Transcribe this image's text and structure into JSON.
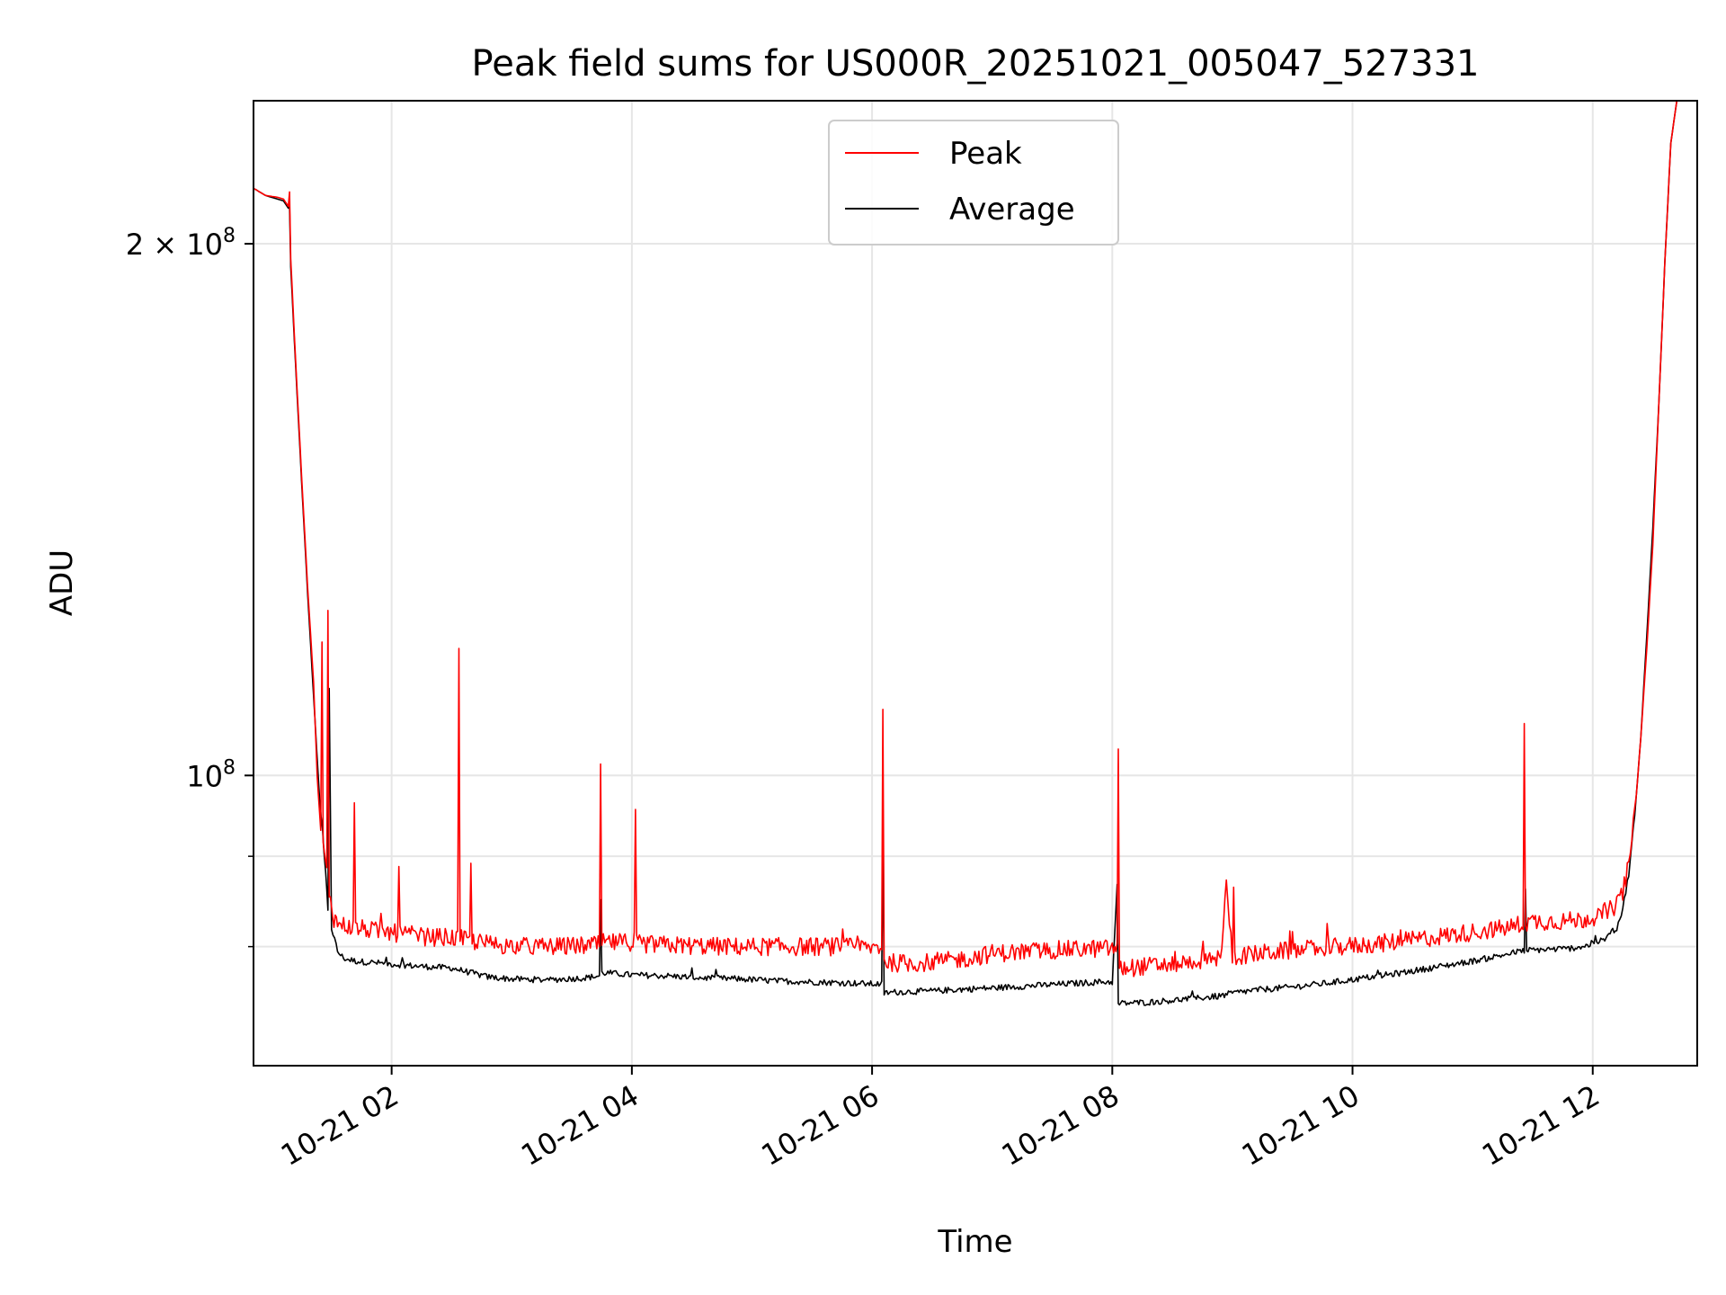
{
  "chart_data": {
    "type": "line",
    "title": "Peak field sums for US000R_20251021_005047_527331",
    "xlabel": "Time",
    "ylabel": "ADU",
    "yscale": "log",
    "xlim": [
      0.85,
      12.87
    ],
    "ylim": [
      68500000,
      241000000
    ],
    "grid": true,
    "legend_position": "top-center",
    "colors": {
      "peak": "#ff0000",
      "average": "#000000",
      "grid": "#e6e6e6"
    },
    "x_ticks": [
      {
        "value": 2,
        "label": "10-21 02"
      },
      {
        "value": 4,
        "label": "10-21 04"
      },
      {
        "value": 6,
        "label": "10-21 06"
      },
      {
        "value": 8,
        "label": "10-21 08"
      },
      {
        "value": 10,
        "label": "10-21 10"
      },
      {
        "value": 12,
        "label": "10-21 12"
      }
    ],
    "y_major_ticks": [
      {
        "value": 100000000,
        "base": "10",
        "exp": "8",
        "prefix": ""
      },
      {
        "value": 200000000,
        "base": "10",
        "exp": "8",
        "prefix": "2 × "
      }
    ],
    "y_minor_ticks": [
      80000000,
      90000000
    ],
    "series": [
      {
        "name": "Peak",
        "key": "peak",
        "x": [
          0.85,
          0.95,
          1.05,
          1.1,
          1.14,
          1.15,
          1.16,
          1.2,
          1.25,
          1.3,
          1.35,
          1.38,
          1.41,
          1.42,
          1.43,
          1.46,
          1.47,
          1.48,
          1.5,
          1.52,
          1.55,
          1.6,
          1.68,
          1.69,
          1.7,
          1.8,
          1.9,
          2.05,
          2.06,
          2.07,
          2.2,
          2.3,
          2.4,
          2.55,
          2.56,
          2.57,
          2.65,
          2.66,
          2.67,
          2.8,
          3.0,
          3.2,
          3.4,
          3.6,
          3.73,
          3.74,
          3.75,
          3.8,
          4.02,
          4.03,
          4.04,
          4.2,
          4.5,
          4.8,
          5.1,
          5.4,
          5.7,
          6.0,
          6.08,
          6.09,
          6.1,
          6.2,
          6.4,
          6.6,
          6.8,
          7.0,
          7.3,
          7.6,
          7.9,
          8.0,
          8.04,
          8.05,
          8.06,
          8.1,
          8.3,
          8.5,
          8.7,
          8.9,
          8.95,
          9.0,
          9.01,
          9.02,
          9.1,
          9.3,
          9.6,
          9.9,
          10.2,
          10.5,
          10.8,
          11.1,
          11.3,
          11.42,
          11.43,
          11.44,
          11.5,
          11.7,
          11.9,
          12.1,
          12.2,
          12.25,
          12.3,
          12.35,
          12.4,
          12.45,
          12.5,
          12.55,
          12.6,
          12.65,
          12.7,
          12.75,
          12.8,
          12.87
        ],
        "values": [
          215000000,
          213000000,
          212500000,
          212000000,
          210000000,
          214000000,
          196000000,
          172000000,
          148000000,
          128000000,
          113000000,
          100000000,
          93000000,
          119000000,
          91000000,
          88000000,
          124000000,
          86000000,
          84500000,
          83000000,
          82500000,
          82300000,
          82000000,
          96500000,
          82000000,
          81800000,
          81600000,
          81400000,
          89500000,
          81300000,
          81200000,
          81000000,
          81000000,
          80900000,
          118000000,
          80800000,
          80700000,
          88500000,
          80600000,
          80300000,
          80100000,
          80000000,
          80000000,
          80100000,
          80200000,
          101500000,
          80400000,
          80400000,
          80500000,
          95000000,
          80300000,
          80200000,
          80100000,
          80000000,
          80000000,
          80000000,
          80000000,
          79900000,
          80000000,
          109000000,
          78500000,
          78300000,
          78300000,
          78500000,
          78800000,
          79300000,
          79500000,
          79700000,
          79800000,
          79800000,
          79800000,
          103500000,
          77600000,
          77800000,
          78000000,
          78200000,
          78500000,
          78800000,
          86500000,
          79000000,
          87000000,
          79000000,
          79100000,
          79400000,
          79700000,
          80000000,
          80300000,
          80700000,
          81200000,
          81700000,
          82000000,
          82500000,
          107000000,
          82500000,
          82700000,
          82700000,
          82800000,
          83500000,
          84500000,
          86000000,
          89000000,
          95000000,
          105000000,
          118000000,
          135000000,
          162000000,
          195000000,
          228000000,
          241000000,
          241000000,
          241000000,
          241000000
        ]
      },
      {
        "name": "Average",
        "key": "average",
        "x": [
          0.85,
          0.95,
          1.05,
          1.1,
          1.14,
          1.15,
          1.16,
          1.2,
          1.25,
          1.3,
          1.35,
          1.4,
          1.45,
          1.47,
          1.48,
          1.5,
          1.55,
          1.6,
          1.7,
          1.9,
          2.2,
          2.5,
          2.6,
          2.7,
          2.8,
          3.0,
          3.3,
          3.6,
          3.73,
          3.74,
          3.75,
          3.8,
          4.0,
          4.3,
          4.6,
          4.9,
          5.2,
          5.5,
          5.8,
          6.0,
          6.08,
          6.09,
          6.1,
          6.2,
          6.5,
          6.8,
          7.0,
          7.3,
          7.6,
          7.9,
          8.0,
          8.04,
          8.05,
          8.06,
          8.3,
          8.6,
          8.9,
          9.0,
          9.2,
          9.5,
          9.8,
          10.1,
          10.4,
          10.7,
          11.0,
          11.2,
          11.43,
          11.44,
          11.45,
          11.6,
          11.8,
          12.0,
          12.1,
          12.2,
          12.25,
          12.3,
          12.35,
          12.4,
          12.45,
          12.5,
          12.55,
          12.6,
          12.65,
          12.7,
          12.75,
          12.8,
          12.87
        ],
        "values": [
          215000000,
          213000000,
          212000000,
          211500000,
          209500000,
          210000000,
          194000000,
          171000000,
          147000000,
          127000000,
          111000000,
          97000000,
          88000000,
          84000000,
          112000000,
          82000000,
          79500000,
          78800000,
          78500000,
          78300000,
          78000000,
          77800000,
          77500000,
          77200000,
          76900000,
          76700000,
          76600000,
          76800000,
          77000000,
          85000000,
          77300000,
          77300000,
          77100000,
          77000000,
          76800000,
          76700000,
          76500000,
          76400000,
          76300000,
          76200000,
          76200000,
          93000000,
          75300000,
          75400000,
          75500000,
          75700000,
          75800000,
          76000000,
          76200000,
          76400000,
          76400000,
          86500000,
          74200000,
          74300000,
          74400000,
          74700000,
          75000000,
          75300000,
          75600000,
          75900000,
          76300000,
          76800000,
          77300000,
          77900000,
          78500000,
          79000000,
          79600000,
          86000000,
          79600000,
          79700000,
          79800000,
          80200000,
          80800000,
          82000000,
          84000000,
          88000000,
          95000000,
          105000000,
          120000000,
          138000000,
          162000000,
          195000000,
          228000000,
          241000000,
          241000000,
          241000000,
          241000000
        ]
      }
    ]
  }
}
